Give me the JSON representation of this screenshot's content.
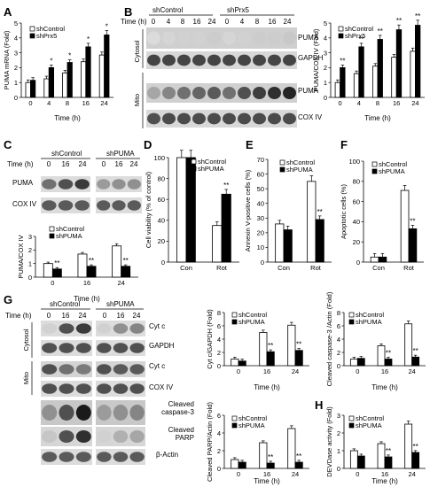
{
  "panel_letters": [
    "A",
    "B",
    "C",
    "D",
    "E",
    "F",
    "G",
    "H"
  ],
  "common": {
    "shControl": "shControl",
    "shPrx5": "shPrx5",
    "shPUMA": "shPUMA",
    "time_h": "Time (h)",
    "time_label": "Time (h)",
    "cytosol": "Cytosol",
    "mito": "Mito",
    "sig1": "*",
    "sig2": "**"
  },
  "blot_B": {
    "groups": [
      "shControl",
      "shPrx5"
    ],
    "times": [
      "0",
      "4",
      "8",
      "16",
      "24",
      "0",
      "4",
      "8",
      "16",
      "24"
    ],
    "bands": [
      "PUMA",
      "GAPDH",
      "PUMA",
      "COX IV"
    ]
  },
  "blot_C": {
    "groups": [
      "shControl",
      "shPUMA"
    ],
    "times": [
      "0",
      "16",
      "24",
      "0",
      "16",
      "24"
    ],
    "bands": [
      "PUMA",
      "COX IV"
    ]
  },
  "blot_G": {
    "groups": [
      "shControl",
      "shPUMA"
    ],
    "times": [
      "0",
      "16",
      "24",
      "0",
      "16",
      "24"
    ],
    "bands": [
      "Cyt c",
      "GAPDH",
      "Cyt c",
      "COX IV",
      "Cleaved caspase-3",
      "Cleaved PARP",
      "β-Actin"
    ]
  },
  "chart_data": [
    {
      "id": "A",
      "type": "bar",
      "ylabel": "PUMA mRNA (Fold)",
      "xlabel": "Time (h)",
      "categories": [
        "0",
        "4",
        "8",
        "16",
        "24"
      ],
      "ylim": [
        0,
        5
      ],
      "yticks": [
        0,
        1,
        2,
        3,
        4,
        5
      ],
      "series": [
        {
          "name": "shControl",
          "values": [
            1.0,
            1.25,
            1.65,
            2.4,
            2.85
          ]
        },
        {
          "name": "shPrx5",
          "values": [
            1.15,
            2.0,
            2.35,
            3.4,
            4.2
          ]
        }
      ],
      "sig": [
        "",
        "*",
        "*",
        "*",
        "*"
      ]
    },
    {
      "id": "B",
      "type": "bar",
      "ylabel": "PUMA/COX IV (Fold)",
      "xlabel": "Time (h)",
      "categories": [
        "0",
        "4",
        "8",
        "16",
        "24"
      ],
      "ylim": [
        0,
        5
      ],
      "yticks": [
        0,
        1,
        2,
        3,
        4,
        5
      ],
      "series": [
        {
          "name": "shControl",
          "values": [
            1.0,
            1.6,
            2.1,
            2.7,
            3.1
          ]
        },
        {
          "name": "shPrx5",
          "values": [
            2.0,
            3.4,
            3.9,
            4.55,
            4.85
          ]
        }
      ],
      "sig": [
        "**",
        "**",
        "**",
        "**",
        "**"
      ]
    },
    {
      "id": "C",
      "type": "bar",
      "ylabel": "PUMA/COX IV",
      "xlabel": "Time (h)",
      "categories": [
        "0",
        "16",
        "24"
      ],
      "ylim": [
        0,
        3
      ],
      "yticks": [
        0,
        1,
        2,
        3
      ],
      "series": [
        {
          "name": "shControl",
          "values": [
            1.0,
            1.7,
            2.3
          ]
        },
        {
          "name": "shPUMA",
          "values": [
            0.6,
            0.8,
            0.8
          ]
        }
      ],
      "sig": [
        "**",
        "**",
        "**"
      ]
    },
    {
      "id": "D",
      "type": "bar",
      "ylabel": "Cell viability (% of control)",
      "xlabel": "",
      "categories": [
        "Con",
        "Rot"
      ],
      "ylim": [
        0,
        100
      ],
      "yticks": [
        0,
        20,
        40,
        60,
        80,
        100
      ],
      "series": [
        {
          "name": "shControl",
          "values": [
            100,
            35
          ]
        },
        {
          "name": "shPUMA",
          "values": [
            100,
            65
          ]
        }
      ],
      "sig": [
        "",
        "**"
      ]
    },
    {
      "id": "E",
      "type": "bar",
      "ylabel": "Annexin V-positive cells (%)",
      "xlabel": "",
      "categories": [
        "Con",
        "Rot"
      ],
      "ylim": [
        0,
        70
      ],
      "yticks": [
        0,
        10,
        20,
        30,
        40,
        50,
        60,
        70
      ],
      "series": [
        {
          "name": "shControl",
          "values": [
            26,
            55
          ]
        },
        {
          "name": "shPUMA",
          "values": [
            22,
            29
          ]
        }
      ],
      "sig": [
        "",
        "**"
      ]
    },
    {
      "id": "F",
      "type": "bar",
      "ylabel": "Apoptotic cells (%)",
      "xlabel": "",
      "categories": [
        "Con",
        "Rot"
      ],
      "ylim": [
        0,
        100
      ],
      "yticks": [
        0,
        20,
        40,
        60,
        80,
        100
      ],
      "series": [
        {
          "name": "shControl",
          "values": [
            5,
            71
          ]
        },
        {
          "name": "shPUMA",
          "values": [
            5,
            33
          ]
        }
      ],
      "sig": [
        "",
        "**"
      ]
    },
    {
      "id": "G1",
      "type": "bar",
      "ylabel": "Cyt c/GAPDH (Fold)",
      "xlabel": "Time (h)",
      "categories": [
        "0",
        "16",
        "24"
      ],
      "ylim": [
        0,
        8
      ],
      "yticks": [
        0,
        2,
        4,
        6,
        8
      ],
      "series": [
        {
          "name": "shControl",
          "values": [
            1.0,
            5.0,
            6.1
          ]
        },
        {
          "name": "shPUMA",
          "values": [
            0.7,
            2.1,
            2.3
          ]
        }
      ],
      "sig": [
        "",
        "**",
        "**"
      ]
    },
    {
      "id": "G2",
      "type": "bar",
      "ylabel": "Cleaved caspase-3 /Actin (Fold)",
      "xlabel": "Time (h)",
      "categories": [
        "0",
        "16",
        "24"
      ],
      "ylim": [
        0,
        8
      ],
      "yticks": [
        0,
        2,
        4,
        6,
        8
      ],
      "series": [
        {
          "name": "shControl",
          "values": [
            1.0,
            3.0,
            6.3
          ]
        },
        {
          "name": "shPUMA",
          "values": [
            1.1,
            1.0,
            1.3
          ]
        }
      ],
      "sig": [
        "",
        "**",
        "**"
      ]
    },
    {
      "id": "G3",
      "type": "bar",
      "ylabel": "Cleaved PARP/Actin (Fold)",
      "xlabel": "Time (h)",
      "categories": [
        "0",
        "16",
        "24"
      ],
      "ylim": [
        0,
        6
      ],
      "yticks": [
        0,
        2,
        4,
        6
      ],
      "series": [
        {
          "name": "shControl",
          "values": [
            1.0,
            2.9,
            4.5
          ]
        },
        {
          "name": "shPUMA",
          "values": [
            0.7,
            0.6,
            0.7
          ]
        }
      ],
      "sig": [
        "",
        "**",
        "**"
      ]
    },
    {
      "id": "H",
      "type": "bar",
      "ylabel": "DEVDase activity (Fold)",
      "xlabel": "Time (h)",
      "categories": [
        "0",
        "16",
        "24"
      ],
      "ylim": [
        0,
        3
      ],
      "yticks": [
        0,
        1,
        2,
        3
      ],
      "series": [
        {
          "name": "shControl",
          "values": [
            1.0,
            1.4,
            2.5
          ]
        },
        {
          "name": "shPUMA",
          "values": [
            0.7,
            0.65,
            0.9
          ]
        }
      ],
      "sig": [
        "",
        "**",
        "**"
      ]
    }
  ]
}
